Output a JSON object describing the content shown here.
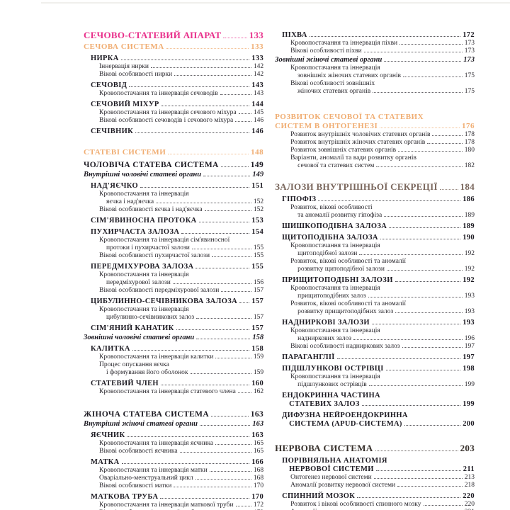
{
  "document": {
    "kind": "book-table-of-contents",
    "language": "uk",
    "colors": {
      "chapter_pink": "#e82e8a",
      "section_orange": "#f0ad72",
      "entry_dark": "#1c1a22",
      "chapter_taupe": "#7a675d",
      "chapter_dark_brown": "#37302b",
      "background": "#ffffff"
    }
  },
  "columns": [
    {
      "side": "left",
      "items": [
        {
          "t": "chapter",
          "variant": "pink",
          "lines": [
            "СЕЧОВО-СТАТЕВИЙ АПАРАТ"
          ],
          "page": "133"
        },
        {
          "t": "section",
          "lines": [
            "СЕЧОВА СИСТЕМА"
          ],
          "page": "133"
        },
        {
          "t": "entry",
          "lines": [
            "НИРКА"
          ],
          "page": "133"
        },
        {
          "t": "sub",
          "lines": [
            "Іннервація нирки"
          ],
          "page": "142"
        },
        {
          "t": "sub",
          "lines": [
            "Вікові особливості нирки"
          ],
          "page": "142"
        },
        {
          "t": "entry",
          "lines": [
            "СЕЧОВІД"
          ],
          "page": "143"
        },
        {
          "t": "sub",
          "lines": [
            "Кровопостачання та іннервація сечоводів"
          ],
          "page": "143"
        },
        {
          "t": "entry",
          "lines": [
            "СЕЧОВИЙ МІХУР"
          ],
          "page": "144"
        },
        {
          "t": "sub",
          "lines": [
            "Кровопостачання та іннервація сечового міхура"
          ],
          "page": "145"
        },
        {
          "t": "sub",
          "lines": [
            "Вікові особливості сечоводів і сечового міхура"
          ],
          "page": "146"
        },
        {
          "t": "entry",
          "lines": [
            "СЕЧІВНИК"
          ],
          "page": "146"
        },
        {
          "t": "gap",
          "h": 15
        },
        {
          "t": "section",
          "lines": [
            "СТАТЕВІ СИСТЕМИ"
          ],
          "page": "148"
        },
        {
          "t": "system",
          "lines": [
            "ЧОЛОВІЧА СТАТЕВА СИСТЕМА"
          ],
          "page": "149"
        },
        {
          "t": "italic",
          "lines": [
            "Внутрішні чоловічі статеві органи"
          ],
          "page": "149"
        },
        {
          "t": "entry",
          "lines": [
            "НАД'ЯЄЧКО"
          ],
          "page": "151"
        },
        {
          "t": "sub",
          "lines": [
            "Кровопостачання та іннервація",
            "яєчка і над'яєчка"
          ],
          "page": "152"
        },
        {
          "t": "sub",
          "lines": [
            "Вікові особливості яєчка і над'яєчка"
          ],
          "page": "152"
        },
        {
          "t": "entry",
          "lines": [
            "СІМ'ЯВИНОСНА ПРОТОКА"
          ],
          "page": "153"
        },
        {
          "t": "entry",
          "lines": [
            "ПУХИРЧАСТА ЗАЛОЗА"
          ],
          "page": "154"
        },
        {
          "t": "sub",
          "lines": [
            "Кровопостачання та іннервація сім'явиносної",
            "протоки і пухирчастої залози"
          ],
          "page": "155"
        },
        {
          "t": "sub",
          "lines": [
            "Вікові особливості пухирчастої залози"
          ],
          "page": "155"
        },
        {
          "t": "entry",
          "lines": [
            "ПЕРЕДМІХУРОВА ЗАЛОЗА"
          ],
          "page": "155"
        },
        {
          "t": "sub",
          "lines": [
            "Кровопостачання та іннервація",
            "передміхурової залози"
          ],
          "page": "156"
        },
        {
          "t": "sub",
          "lines": [
            "Вікові особливості передміхурової залози"
          ],
          "page": "157"
        },
        {
          "t": "entry",
          "lines": [
            "ЦИБУЛИННО-СЕЧІВНИКОВА ЗАЛОЗА"
          ],
          "page": "157"
        },
        {
          "t": "sub",
          "lines": [
            "Кровопостачання та іннервація",
            "цибулинно-сечівникових залоз"
          ],
          "page": "157"
        },
        {
          "t": "entry",
          "lines": [
            "СІМ'ЯНИЙ КАНАТИК"
          ],
          "page": "157"
        },
        {
          "t": "italic",
          "lines": [
            "Зовнішні чоловічі статеві органи"
          ],
          "page": "158"
        },
        {
          "t": "entry",
          "lines": [
            "КАЛИТКА"
          ],
          "page": "158"
        },
        {
          "t": "sub",
          "lines": [
            "Кровопостачання та іннервація калитки"
          ],
          "page": "159"
        },
        {
          "t": "sub",
          "lines": [
            "Процес опускання яєчка",
            "і формування його оболонок"
          ],
          "page": "159"
        },
        {
          "t": "entry",
          "lines": [
            "СТАТЕВИЙ ЧЛЕН"
          ],
          "page": "160"
        },
        {
          "t": "sub",
          "lines": [
            "Кровопостачання та іннервація статевого члена"
          ],
          "page": "162"
        },
        {
          "t": "gap",
          "h": 15
        },
        {
          "t": "system",
          "lines": [
            "ЖІНОЧА СТАТЕВА СИСТЕМА"
          ],
          "page": "163"
        },
        {
          "t": "italic",
          "lines": [
            "Внутрішні жіночі статеві органи"
          ],
          "page": "163"
        },
        {
          "t": "entry",
          "lines": [
            "ЯЄЧНИК"
          ],
          "page": "163"
        },
        {
          "t": "sub",
          "lines": [
            "Кровопостачання та іннервація яєчника"
          ],
          "page": "165"
        },
        {
          "t": "sub",
          "lines": [
            "Вікові особливості яєчника"
          ],
          "page": "165"
        },
        {
          "t": "entry",
          "lines": [
            "МАТКА"
          ],
          "page": "166"
        },
        {
          "t": "sub",
          "lines": [
            "Кровопостачання та іннервація матки"
          ],
          "page": "168"
        },
        {
          "t": "sub",
          "lines": [
            "Оваріально-менструальний цикл"
          ],
          "page": "168"
        },
        {
          "t": "sub",
          "lines": [
            "Вікові особливості матки"
          ],
          "page": "170"
        },
        {
          "t": "entry",
          "lines": [
            "МАТКОВА ТРУБА"
          ],
          "page": "170"
        },
        {
          "t": "sub",
          "lines": [
            "Кровопостачання та іннервація маткової труби"
          ],
          "page": "172"
        },
        {
          "t": "sub",
          "lines": [
            "Вікові особливості маткової труби"
          ],
          "page": "172"
        }
      ]
    },
    {
      "side": "right",
      "items": [
        {
          "t": "entry",
          "lines": [
            "ПІХВА"
          ],
          "page": "172"
        },
        {
          "t": "sub",
          "lines": [
            "Кровопостачання та іннервація піхви"
          ],
          "page": "173"
        },
        {
          "t": "sub",
          "lines": [
            "Вікові особливості піхви"
          ],
          "page": "173"
        },
        {
          "t": "italic",
          "lines": [
            "Зовнішні жіночі статеві органи"
          ],
          "page": "173"
        },
        {
          "t": "sub",
          "lines": [
            "Кровопостачання та іннервація",
            "зовнішніх жіночих статевих органів"
          ],
          "page": "175"
        },
        {
          "t": "sub",
          "lines": [
            "Вікові особливості зовнішніх",
            "жіночих статевих органів"
          ],
          "page": "175"
        },
        {
          "t": "gap",
          "h": 22
        },
        {
          "t": "section",
          "lines": [
            "РОЗВИТОК СЕЧОВОЇ ТА СТАТЕВИХ",
            "СИСТЕМ В ОНТОГЕНЕЗІ"
          ],
          "page": "176"
        },
        {
          "t": "sub",
          "lines": [
            "Розвиток внутрішніх чоловічих статевих органів"
          ],
          "page": "178"
        },
        {
          "t": "sub",
          "lines": [
            "Розвиток внутрішніх жіночих статевих органів"
          ],
          "page": "178"
        },
        {
          "t": "sub",
          "lines": [
            "Розвиток зовнішніх статевих органів"
          ],
          "page": "180"
        },
        {
          "t": "sub",
          "lines": [
            "Варіанти, аномалії та вади розвитку органів",
            "сечової та статевих систем"
          ],
          "page": "182"
        },
        {
          "t": "gap",
          "h": 14
        },
        {
          "t": "chapter",
          "variant": "taupe",
          "lines": [
            "ЗАЛОЗИ ВНУТРІШНЬОЇ СЕКРЕЦІЇ"
          ],
          "page": "184"
        },
        {
          "t": "entry",
          "lines": [
            "ГІПОФІЗ"
          ],
          "page": "186"
        },
        {
          "t": "sub",
          "lines": [
            "Розвиток, вікові особливості",
            "та аномалії розвитку гіпофіза"
          ],
          "page": "189"
        },
        {
          "t": "entry",
          "lines": [
            "ШИШКОПОДІБНА ЗАЛОЗА"
          ],
          "page": "189"
        },
        {
          "t": "entry",
          "lines": [
            "ЩИТОПОДІБНА ЗАЛОЗА"
          ],
          "page": "190"
        },
        {
          "t": "sub",
          "lines": [
            "Кровопостачання та іннервація",
            "щитоподібної залози"
          ],
          "page": "192"
        },
        {
          "t": "sub",
          "lines": [
            "Розвиток, вікові особливості та аномалії",
            "розвитку щитоподібної залози"
          ],
          "page": "192"
        },
        {
          "t": "entry",
          "lines": [
            "ПРИЩИТОПОДІБНІ ЗАЛОЗИ"
          ],
          "page": "192"
        },
        {
          "t": "sub",
          "lines": [
            "Кровопостачання та іннервація",
            "прищитоподібних залоз"
          ],
          "page": "193"
        },
        {
          "t": "sub",
          "lines": [
            "Розвиток, вікові особливості та аномалії",
            "розвитку прищитоподібних залоз"
          ],
          "page": "193"
        },
        {
          "t": "entry",
          "lines": [
            "НАДНИРКОВІ ЗАЛОЗИ"
          ],
          "page": "193"
        },
        {
          "t": "sub",
          "lines": [
            "Кровопостачання та іннервація",
            "надниркових залоз"
          ],
          "page": "196"
        },
        {
          "t": "sub",
          "lines": [
            "Вікові особливості надниркових залоз"
          ],
          "page": "197"
        },
        {
          "t": "entry",
          "lines": [
            "ПАРАГАНГЛІЇ"
          ],
          "page": "197"
        },
        {
          "t": "entry",
          "lines": [
            "ПІДШЛУНКОВІ ОСТРІВЦІ"
          ],
          "page": "198"
        },
        {
          "t": "sub",
          "lines": [
            "Кровопостачання та іннервація",
            "підшлункових острівців"
          ],
          "page": "199"
        },
        {
          "t": "entry",
          "lines": [
            "ЕНДОКРИННА ЧАСТИНА",
            "СТАТЕВИХ ЗАЛОЗ"
          ],
          "page": "199"
        },
        {
          "t": "entry",
          "lines": [
            "ДИФУЗНА НЕЙРОЕНДОКРИННА",
            "СИСТЕМА (APUD-СИСТЕМА)"
          ],
          "page": "200"
        },
        {
          "t": "gap",
          "h": 18
        },
        {
          "t": "chapter",
          "variant": "dark",
          "lines": [
            "НЕРВОВА СИСТЕМА"
          ],
          "page": "203"
        },
        {
          "t": "entry",
          "lines": [
            "ПОРІВНЯЛЬНА АНАТОМІЯ",
            "НЕРВОВОЇ СИСТЕМИ"
          ],
          "page": "211"
        },
        {
          "t": "sub",
          "lines": [
            "Онтогенез нервової системи"
          ],
          "page": "213"
        },
        {
          "t": "sub",
          "lines": [
            "Аномалії розвитку нервової системи"
          ],
          "page": "218"
        },
        {
          "t": "entry",
          "lines": [
            "СПИННИЙ МОЗОК"
          ],
          "page": "220"
        },
        {
          "t": "sub",
          "lines": [
            "Розвиток і вікові особливості спинного мозку"
          ],
          "page": "220"
        },
        {
          "t": "sub",
          "lines": [
            "Аномалії розвитку спинного мозку"
          ],
          "page": "221"
        }
      ]
    }
  ]
}
